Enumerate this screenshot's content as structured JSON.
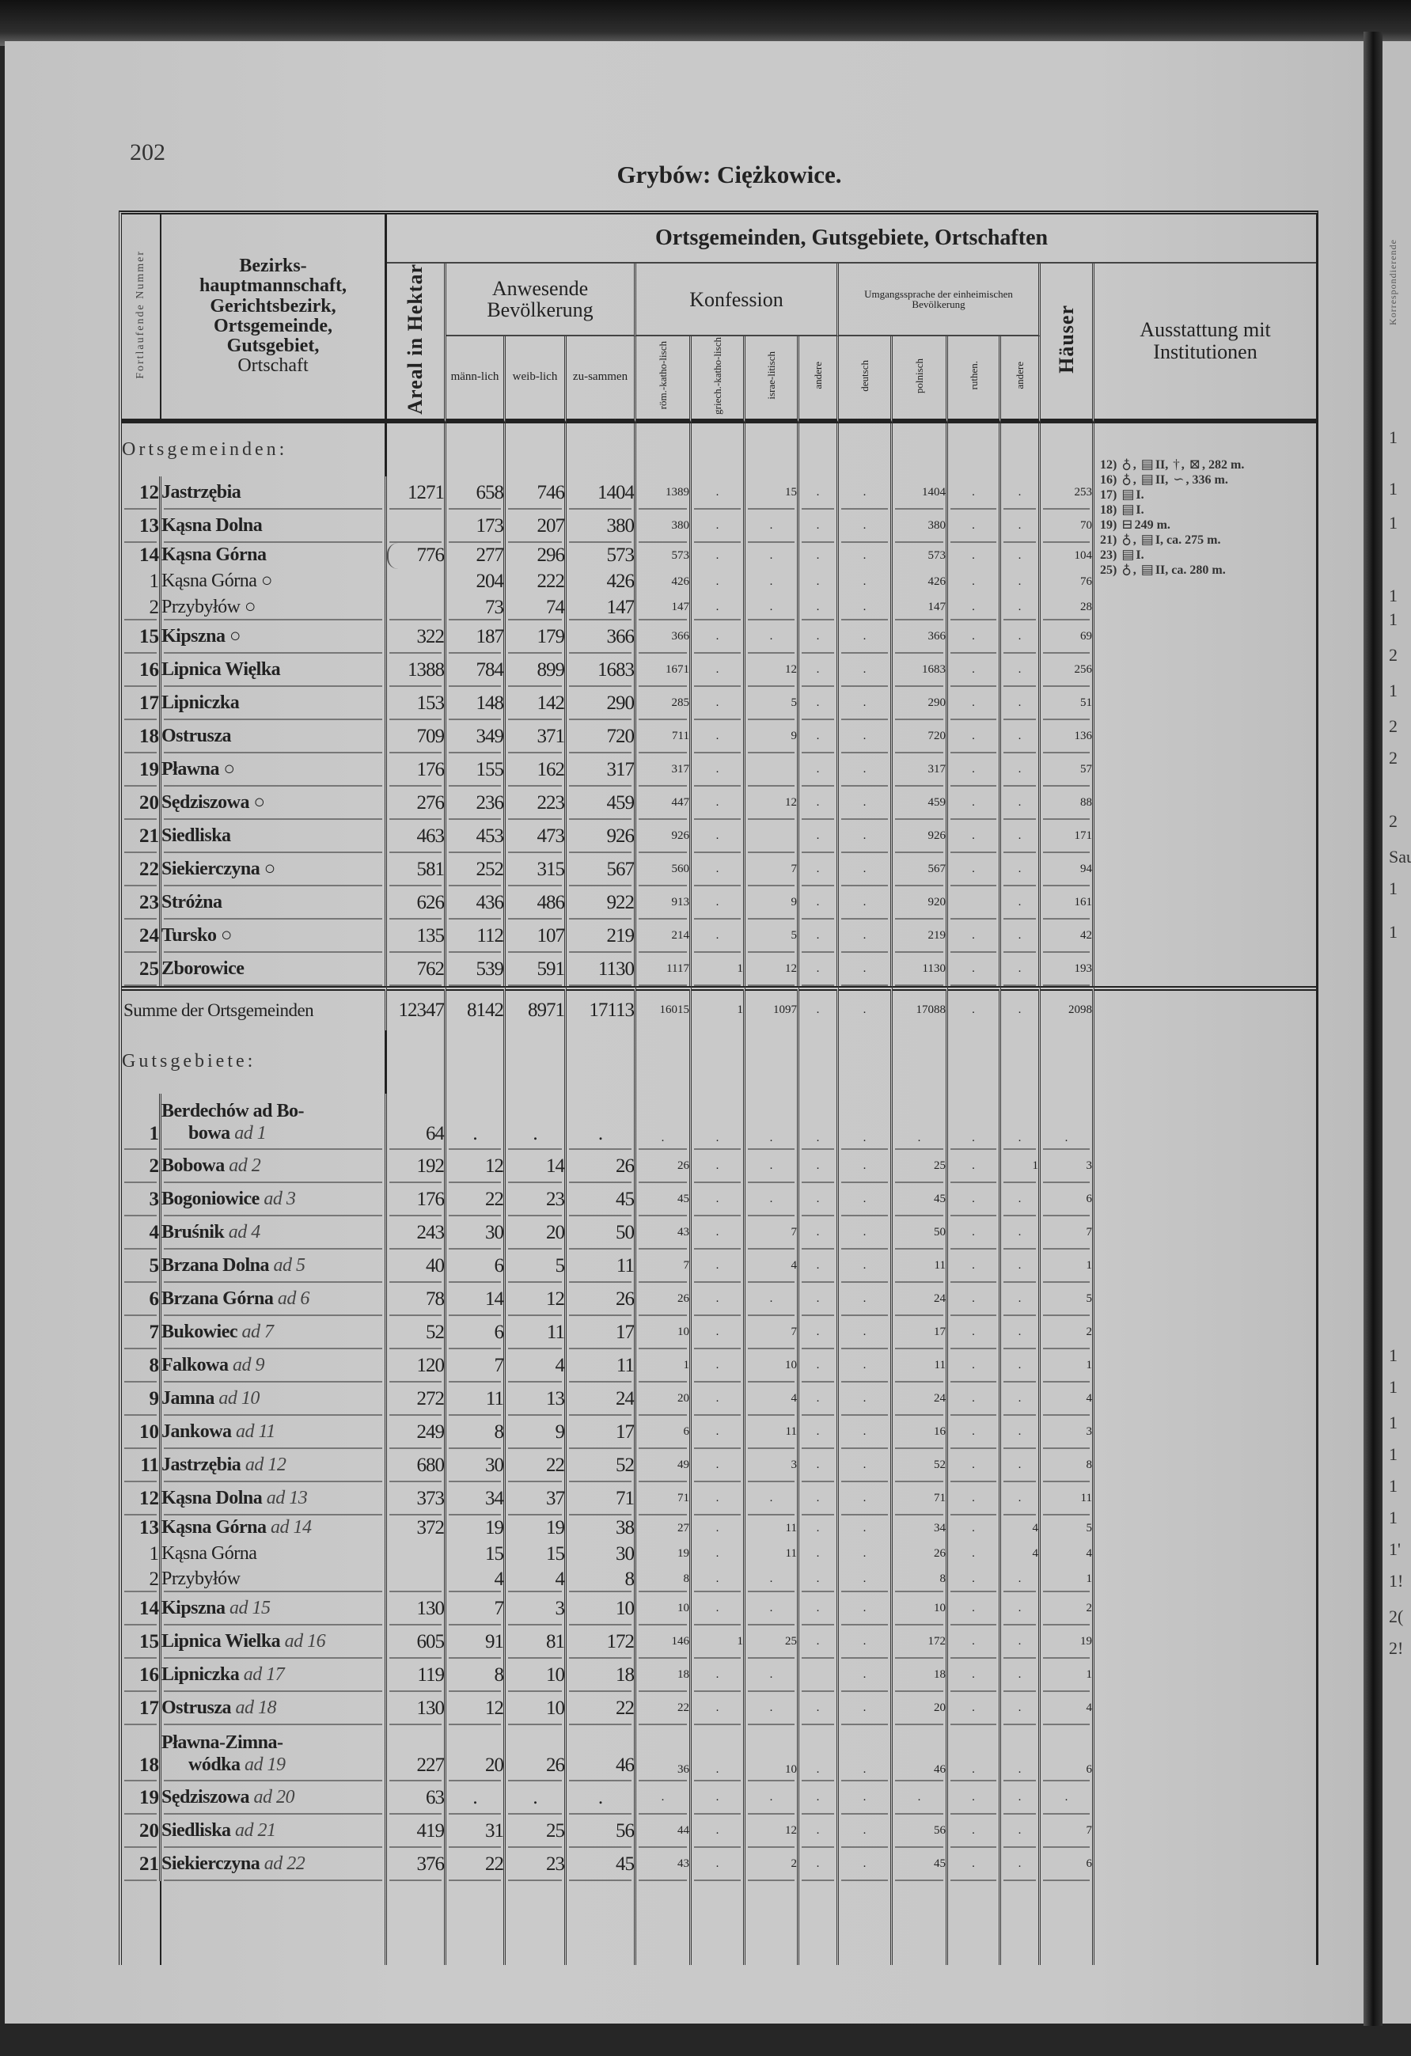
{
  "page_number": "202",
  "title": "Grybów: Ciężkowice.",
  "header": {
    "nr": "Fortlaufende Nummer",
    "name": [
      "Bezirks-",
      "hauptmannschaft,",
      "Gerichtsbezirk,",
      "Ortsgemeinde,",
      "Gutsgebiet,",
      "Ortschaft"
    ],
    "group": "Ortsgemeinden, Gutsgebiete, Ortschaften",
    "areal": "Areal in Hektar",
    "bevoelkerung": "Anwesende Bevölkerung",
    "maennlich": "männ-lich",
    "weiblich": "weib-lich",
    "zusammen": "zu-sammen",
    "konfession": "Konfession",
    "roem": "röm.-katho-lisch",
    "griech": "griech.-katho-lisch",
    "israel": "israe-litisch",
    "andere1": "andere",
    "sprache": "Umgangssprache der einheimischen Bevölkerung",
    "deutsch": "deutsch",
    "polnisch": "polnisch",
    "ruthen": "ruthen.",
    "andere2": "andere",
    "haeuser": "Häuser",
    "ausstattung": "Ausstattung mit Institutionen"
  },
  "ortsgemeinden_label": "Ortsgemeinden:",
  "ortsgemeinden": [
    {
      "nr": "12",
      "name": "Jastrzębia",
      "v": [
        "1271",
        "658",
        "746",
        "1404",
        "1389",
        ".",
        "15",
        ".",
        ".",
        "1404",
        ".",
        ".",
        "253"
      ]
    },
    {
      "nr": "13",
      "name": "Kąsna Dolna",
      "v": [
        "",
        "173",
        "207",
        "380",
        "380",
        ".",
        ".",
        ".",
        ".",
        "380",
        ".",
        ".",
        "70"
      ]
    },
    {
      "nr": "14",
      "name": "Kąsna Górna",
      "v": [
        "776",
        "277",
        "296",
        "573",
        "573",
        ".",
        ".",
        ".",
        ".",
        "573",
        ".",
        ".",
        "104"
      ],
      "sub": [
        {
          "nr": "1",
          "name": "Kąsna Górna ○",
          "v": [
            "",
            "204",
            "222",
            "426",
            "426",
            ".",
            ".",
            ".",
            ".",
            "426",
            ".",
            ".",
            "76"
          ]
        },
        {
          "nr": "2",
          "name": "Przybyłów ○",
          "v": [
            "",
            "73",
            "74",
            "147",
            "147",
            ".",
            ".",
            ".",
            ".",
            "147",
            ".",
            ".",
            "28"
          ]
        }
      ]
    },
    {
      "nr": "15",
      "name": "Kipszna ○",
      "v": [
        "322",
        "187",
        "179",
        "366",
        "366",
        ".",
        ".",
        ".",
        ".",
        "366",
        ".",
        ".",
        "69"
      ]
    },
    {
      "nr": "16",
      "name": "Lipnica Więlka",
      "v": [
        "1388",
        "784",
        "899",
        "1683",
        "1671",
        ".",
        "12",
        ".",
        ".",
        "1683",
        ".",
        ".",
        "256"
      ]
    },
    {
      "nr": "17",
      "name": "Lipniczka",
      "v": [
        "153",
        "148",
        "142",
        "290",
        "285",
        ".",
        "5",
        ".",
        ".",
        "290",
        ".",
        ".",
        "51"
      ]
    },
    {
      "nr": "18",
      "name": "Ostrusza",
      "v": [
        "709",
        "349",
        "371",
        "720",
        "711",
        ".",
        "9",
        ".",
        ".",
        "720",
        ".",
        ".",
        "136"
      ]
    },
    {
      "nr": "19",
      "name": "Pławna ○",
      "v": [
        "176",
        "155",
        "162",
        "317",
        "317",
        ".",
        "",
        ".",
        ".",
        "317",
        ".",
        ".",
        "57"
      ]
    },
    {
      "nr": "20",
      "name": "Sędziszowa ○",
      "v": [
        "276",
        "236",
        "223",
        "459",
        "447",
        ".",
        "12",
        ".",
        ".",
        "459",
        ".",
        ".",
        "88"
      ]
    },
    {
      "nr": "21",
      "name": "Siedliska",
      "v": [
        "463",
        "453",
        "473",
        "926",
        "926",
        ".",
        "",
        ".",
        ".",
        "926",
        ".",
        ".",
        "171"
      ]
    },
    {
      "nr": "22",
      "name": "Siekierczyna ○",
      "v": [
        "581",
        "252",
        "315",
        "567",
        "560",
        ".",
        "7",
        ".",
        ".",
        "567",
        ".",
        ".",
        "94"
      ]
    },
    {
      "nr": "23",
      "name": "Stróżna",
      "v": [
        "626",
        "436",
        "486",
        "922",
        "913",
        ".",
        "9",
        ".",
        ".",
        "920",
        "",
        ".",
        "161"
      ]
    },
    {
      "nr": "24",
      "name": "Tursko ○",
      "v": [
        "135",
        "112",
        "107",
        "219",
        "214",
        ".",
        "5",
        ".",
        ".",
        "219",
        ".",
        ".",
        "42"
      ]
    },
    {
      "nr": "25",
      "name": "Zborowice",
      "v": [
        "762",
        "539",
        "591",
        "1130",
        "1117",
        "1",
        "12",
        ".",
        ".",
        "1130",
        ".",
        ".",
        "193"
      ]
    }
  ],
  "summe": {
    "label": "Summe der Ortsgemeinden",
    "v": [
      "12347",
      "8142",
      "8971",
      "17113",
      "16015",
      "1",
      "1097",
      ".",
      ".",
      "17088",
      ".",
      ".",
      "2098"
    ]
  },
  "ausstattung_notes": [
    {
      "ref": "12)",
      "parts": [
        {
          "icon": "church-icon"
        },
        {
          "t": ","
        },
        {
          "icon": "school-icon"
        },
        {
          "t": "II,"
        },
        {
          "icon": "cross-staff-icon"
        },
        {
          "t": ","
        },
        {
          "icon": "post-office-icon"
        },
        {
          "t": ", 282 m."
        }
      ]
    },
    {
      "ref": "16)",
      "parts": [
        {
          "icon": "church-icon"
        },
        {
          "t": ","
        },
        {
          "icon": "school-icon"
        },
        {
          "t": "II,"
        },
        {
          "icon": "post-horn-icon"
        },
        {
          "t": ", 336 m."
        }
      ]
    },
    {
      "ref": "17)",
      "parts": [
        {
          "icon": "school-icon"
        },
        {
          "t": "I."
        }
      ]
    },
    {
      "ref": "18)",
      "parts": [
        {
          "icon": "school-icon"
        },
        {
          "t": "I."
        }
      ]
    },
    {
      "ref": "19)",
      "parts": [
        {
          "icon": "railway-station-icon"
        },
        {
          "t": "249 m."
        }
      ]
    },
    {
      "ref": "21)",
      "parts": [
        {
          "icon": "church-icon"
        },
        {
          "t": ","
        },
        {
          "icon": "school-icon"
        },
        {
          "t": "I, ca. 275 m."
        }
      ]
    },
    {
      "ref": "23)",
      "parts": [
        {
          "icon": "school-icon"
        },
        {
          "t": "I."
        }
      ]
    },
    {
      "ref": "25)",
      "parts": [
        {
          "icon": "church-icon"
        },
        {
          "t": ","
        },
        {
          "icon": "school-icon"
        },
        {
          "t": "II, ca. 280 m."
        }
      ]
    }
  ],
  "icons": {
    "church-icon": "♁",
    "school-icon": "▤",
    "cross-staff-icon": "†",
    "post-office-icon": "⊠",
    "post-horn-icon": "∽",
    "railway-station-icon": "⊟"
  },
  "gutsgebiete_label": "Gutsgebiete:",
  "gutsgebiete": [
    {
      "nr": "1",
      "name": "Berdechów ad Bo-",
      "name2": "bowa",
      "ad": "ad 1",
      "two": true,
      "v": [
        "64",
        ".",
        ".",
        ".",
        ".",
        ".",
        ".",
        ".",
        ".",
        ".",
        ".",
        ".",
        "."
      ]
    },
    {
      "nr": "2",
      "name": "Bobowa",
      "ad": "ad 2",
      "v": [
        "192",
        "12",
        "14",
        "26",
        "26",
        ".",
        ".",
        ".",
        ".",
        "25",
        ".",
        "1",
        "3"
      ]
    },
    {
      "nr": "3",
      "name": "Bogoniowice",
      "ad": "ad 3",
      "v": [
        "176",
        "22",
        "23",
        "45",
        "45",
        ".",
        ".",
        ".",
        ".",
        "45",
        ".",
        ".",
        "6"
      ]
    },
    {
      "nr": "4",
      "name": "Bruśnik",
      "ad": "ad 4",
      "v": [
        "243",
        "30",
        "20",
        "50",
        "43",
        ".",
        "7",
        ".",
        ".",
        "50",
        ".",
        ".",
        "7"
      ]
    },
    {
      "nr": "5",
      "name": "Brzana Dolna",
      "ad": "ad 5",
      "v": [
        "40",
        "6",
        "5",
        "11",
        "7",
        ".",
        "4",
        ".",
        ".",
        "11",
        ".",
        ".",
        "1"
      ]
    },
    {
      "nr": "6",
      "name": "Brzana Górna",
      "ad": "ad 6",
      "v": [
        "78",
        "14",
        "12",
        "26",
        "26",
        ".",
        ".",
        ".",
        ".",
        "24",
        ".",
        ".",
        "5"
      ]
    },
    {
      "nr": "7",
      "name": "Bukowiec",
      "ad": "ad 7",
      "v": [
        "52",
        "6",
        "11",
        "17",
        "10",
        ".",
        "7",
        ".",
        ".",
        "17",
        ".",
        ".",
        "2"
      ]
    },
    {
      "nr": "8",
      "name": "Falkowa",
      "ad": "ad 9",
      "v": [
        "120",
        "7",
        "4",
        "11",
        "1",
        ".",
        "10",
        ".",
        ".",
        "11",
        ".",
        ".",
        "1"
      ]
    },
    {
      "nr": "9",
      "name": "Jamna",
      "ad": "ad 10",
      "v": [
        "272",
        "11",
        "13",
        "24",
        "20",
        ".",
        "4",
        ".",
        ".",
        "24",
        ".",
        ".",
        "4"
      ]
    },
    {
      "nr": "10",
      "name": "Jankowa",
      "ad": "ad 11",
      "v": [
        "249",
        "8",
        "9",
        "17",
        "6",
        ".",
        "11",
        ".",
        ".",
        "16",
        ".",
        ".",
        "3"
      ]
    },
    {
      "nr": "11",
      "name": "Jastrzębia",
      "ad": "ad 12",
      "v": [
        "680",
        "30",
        "22",
        "52",
        "49",
        ".",
        "3",
        ".",
        ".",
        "52",
        ".",
        ".",
        "8"
      ]
    },
    {
      "nr": "12",
      "name": "Kąsna Dolna",
      "ad": "ad 13",
      "v": [
        "373",
        "34",
        "37",
        "71",
        "71",
        ".",
        ".",
        ".",
        ".",
        "71",
        ".",
        ".",
        "11"
      ]
    },
    {
      "nr": "13",
      "name": "Kąsna Górna",
      "ad": "ad 14",
      "v": [
        "372",
        "19",
        "19",
        "38",
        "27",
        ".",
        "11",
        ".",
        ".",
        "34",
        ".",
        "4",
        "5"
      ],
      "sub": [
        {
          "nr": "1",
          "name": "Kąsna Górna",
          "v": [
            "",
            "15",
            "15",
            "30",
            "19",
            ".",
            "11",
            ".",
            ".",
            "26",
            ".",
            "4",
            "4"
          ]
        },
        {
          "nr": "2",
          "name": "Przybyłów",
          "v": [
            "",
            "4",
            "4",
            "8",
            "8",
            ".",
            ".",
            ".",
            ".",
            "8",
            ".",
            ".",
            "1"
          ]
        }
      ]
    },
    {
      "nr": "14",
      "name": "Kipszna",
      "ad": "ad 15",
      "v": [
        "130",
        "7",
        "3",
        "10",
        "10",
        ".",
        ".",
        ".",
        ".",
        "10",
        ".",
        ".",
        "2"
      ]
    },
    {
      "nr": "15",
      "name": "Lipnica Wielka",
      "ad": "ad 16",
      "v": [
        "605",
        "91",
        "81",
        "172",
        "146",
        "1",
        "25",
        ".",
        ".",
        "172",
        ".",
        ".",
        "19"
      ]
    },
    {
      "nr": "16",
      "name": "Lipniczka",
      "ad": "ad 17",
      "v": [
        "119",
        "8",
        "10",
        "18",
        "18",
        ".",
        ".",
        "",
        ".",
        "18",
        ".",
        ".",
        "1"
      ]
    },
    {
      "nr": "17",
      "name": "Ostrusza",
      "ad": "ad 18",
      "v": [
        "130",
        "12",
        "10",
        "22",
        "22",
        ".",
        ".",
        ".",
        ".",
        "20",
        ".",
        ".",
        "4"
      ]
    },
    {
      "nr": "18",
      "name": "Pławna-Zimna-",
      "name2": "wódka",
      "ad": "ad 19",
      "two": true,
      "v": [
        "227",
        "20",
        "26",
        "46",
        "36",
        ".",
        "10",
        ".",
        ".",
        "46",
        ".",
        ".",
        "6"
      ]
    },
    {
      "nr": "19",
      "name": "Sędziszowa",
      "ad": "ad 20",
      "v": [
        "63",
        ".",
        ".",
        ".",
        ".",
        ".",
        ".",
        ".",
        ".",
        ".",
        ".",
        ".",
        "."
      ]
    },
    {
      "nr": "20",
      "name": "Siedliska",
      "ad": "ad 21",
      "v": [
        "419",
        "31",
        "25",
        "56",
        "44",
        ".",
        "12",
        ".",
        ".",
        "56",
        ".",
        ".",
        "7"
      ]
    },
    {
      "nr": "21",
      "name": "Siekierczyna",
      "ad": "ad 22",
      "v": [
        "376",
        "22",
        "23",
        "45",
        "43",
        ".",
        "2",
        ".",
        ".",
        "45",
        ".",
        ".",
        "6"
      ]
    }
  ],
  "adjacent_page": {
    "header": "Korrespondierende",
    "fragments": [
      "1",
      "1",
      "1",
      "1",
      "1",
      "2",
      "1",
      "2",
      "2",
      "2",
      "Sau",
      "1",
      "1",
      "1",
      "1",
      "1",
      "1",
      "1",
      "1",
      "1'",
      "1!",
      "2(",
      "2!"
    ]
  }
}
